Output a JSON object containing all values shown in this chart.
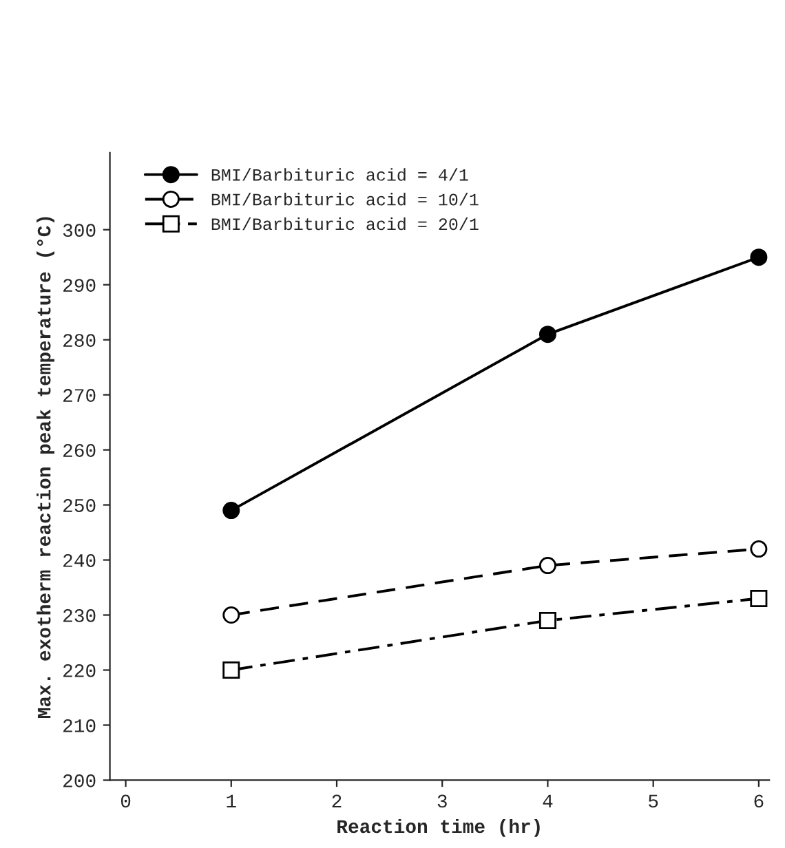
{
  "chart_data": {
    "type": "line",
    "xlabel": "Reaction time (hr)",
    "ylabel": "Max. exotherm reaction peak temperature (°C)",
    "x": [
      1,
      4,
      6
    ],
    "series": [
      {
        "name": "BMI/Barbituric acid = 4/1",
        "color": "#000000",
        "values": [
          249,
          281,
          295
        ],
        "marker": "circle",
        "line_style": "solid"
      },
      {
        "name": "BMI/Barbituric acid = 10/1",
        "color": "#000000",
        "values": [
          230,
          239,
          242
        ],
        "marker": "circle",
        "line_style": "dashed"
      },
      {
        "name": "BMI/Barbituric acid = 20/1",
        "color": "#000000",
        "values": [
          220,
          229,
          233
        ],
        "marker": "square",
        "line_style": "dashdot"
      }
    ],
    "xlim": [
      -0.15,
      6.1
    ],
    "xticks": [
      0,
      1,
      2,
      3,
      4,
      5,
      6
    ],
    "ylim": [
      200,
      314
    ],
    "yticks": [
      200,
      210,
      220,
      230,
      240,
      250,
      260,
      270,
      280,
      290,
      300
    ],
    "grid": false,
    "legend": "top left"
  }
}
